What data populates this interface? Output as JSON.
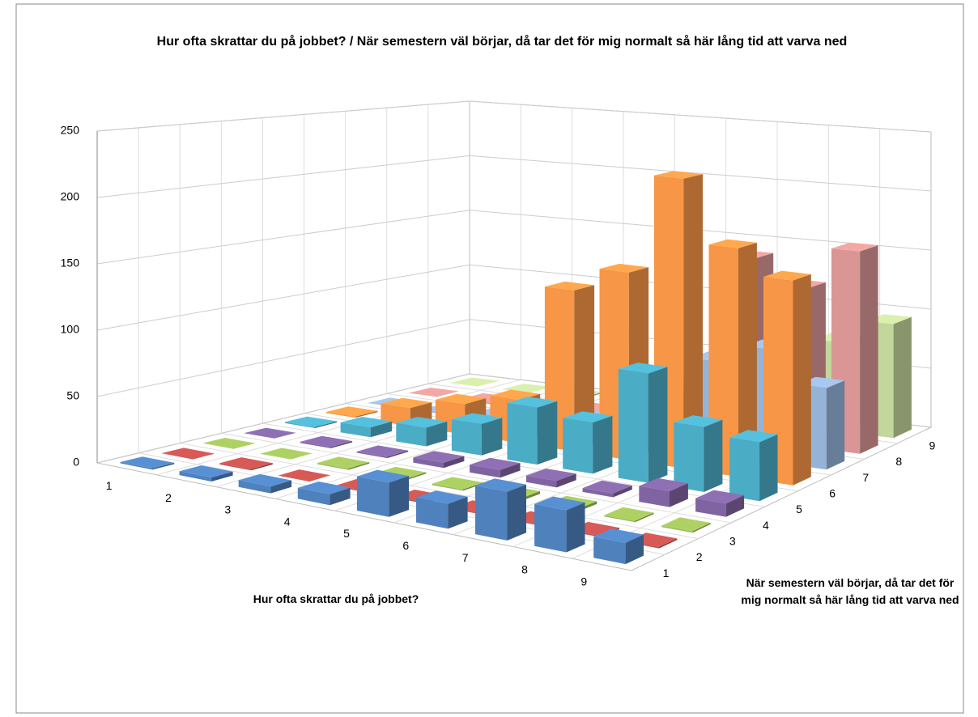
{
  "chart_data": {
    "type": "bar3d",
    "title": "Hur ofta skrattar du på jobbet? / När semestern väl börjar, då tar det för mig normalt så här lång tid att varva ned",
    "x_label": "Hur ofta skrattar du på jobbet?",
    "z_label": "När semestern väl börjar, då tar det för mig normalt så här lång tid att varva ned",
    "categories": [
      "1",
      "2",
      "3",
      "4",
      "5",
      "6",
      "7",
      "8",
      "9"
    ],
    "series": [
      {
        "name": "1",
        "color": "#4f81bd",
        "values": [
          1,
          3,
          5,
          8,
          25,
          18,
          35,
          30,
          15
        ]
      },
      {
        "name": "2",
        "color": "#c0504d",
        "values": [
          0,
          1,
          0,
          1,
          1,
          1,
          1,
          1,
          1
        ]
      },
      {
        "name": "3",
        "color": "#9bbb59",
        "values": [
          0,
          0,
          1,
          1,
          1,
          2,
          2,
          1,
          1
        ]
      },
      {
        "name": "4",
        "color": "#8064a2",
        "values": [
          0,
          1,
          1,
          4,
          6,
          5,
          3,
          12,
          10
        ]
      },
      {
        "name": "5",
        "color": "#4bacc6",
        "values": [
          1,
          8,
          15,
          25,
          45,
          40,
          85,
          50,
          45
        ]
      },
      {
        "name": "6",
        "color": "#f79646",
        "values": [
          1,
          15,
          25,
          35,
          130,
          150,
          230,
          180,
          160
        ]
      },
      {
        "name": "7",
        "color": "#95b3d7",
        "values": [
          0,
          1,
          5,
          10,
          15,
          40,
          75,
          90,
          65
        ]
      },
      {
        "name": "8",
        "color": "#d99694",
        "values": [
          0,
          1,
          2,
          5,
          10,
          40,
          150,
          130,
          165
        ]
      },
      {
        "name": "9",
        "color": "#c3d69b",
        "values": [
          0,
          0,
          1,
          5,
          10,
          30,
          60,
          75,
          95
        ]
      }
    ],
    "ylim": [
      0,
      250
    ],
    "yticks": [
      0,
      50,
      100,
      150,
      200,
      250
    ],
    "grid": true
  }
}
